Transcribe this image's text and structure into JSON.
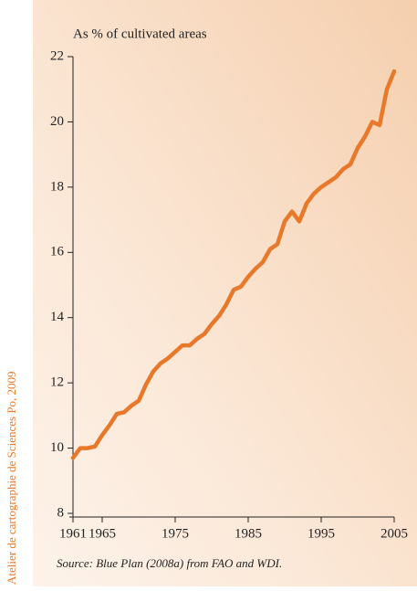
{
  "chart_data": {
    "type": "line",
    "y_label": "As % of cultivated areas",
    "source": "Source: Blue Plan (2008a) from FAO and WDI.",
    "credit": "Atelier de cartographie de Sciences Po, 2009",
    "x": [
      1961,
      1962,
      1963,
      1964,
      1965,
      1966,
      1967,
      1968,
      1969,
      1970,
      1971,
      1972,
      1973,
      1974,
      1975,
      1976,
      1977,
      1978,
      1979,
      1980,
      1981,
      1982,
      1983,
      1984,
      1985,
      1986,
      1987,
      1988,
      1989,
      1990,
      1991,
      1992,
      1993,
      1994,
      1995,
      1996,
      1997,
      1998,
      1999,
      2000,
      2001,
      2002,
      2003,
      2004,
      2005
    ],
    "series": [
      {
        "color": "#e8782a",
        "values": [
          9.7,
          10.0,
          10.0,
          10.05,
          10.4,
          10.7,
          11.05,
          11.1,
          11.3,
          11.45,
          11.95,
          12.35,
          12.6,
          12.75,
          12.95,
          13.15,
          13.15,
          13.35,
          13.5,
          13.8,
          14.05,
          14.4,
          14.85,
          14.95,
          15.25,
          15.5,
          15.7,
          16.1,
          16.25,
          16.95,
          17.25,
          16.95,
          17.5,
          17.8,
          18.0,
          18.15,
          18.3,
          18.55,
          18.7,
          19.2,
          19.55,
          20.0,
          19.9,
          21.0,
          21.55
        ]
      }
    ],
    "xlim": [
      1961,
      2005
    ],
    "xticks": [
      1961,
      1965,
      1975,
      1985,
      1995,
      2005
    ],
    "ylim": [
      8,
      22
    ],
    "yticks": [
      8,
      10,
      12,
      14,
      16,
      18,
      20,
      22
    ]
  }
}
